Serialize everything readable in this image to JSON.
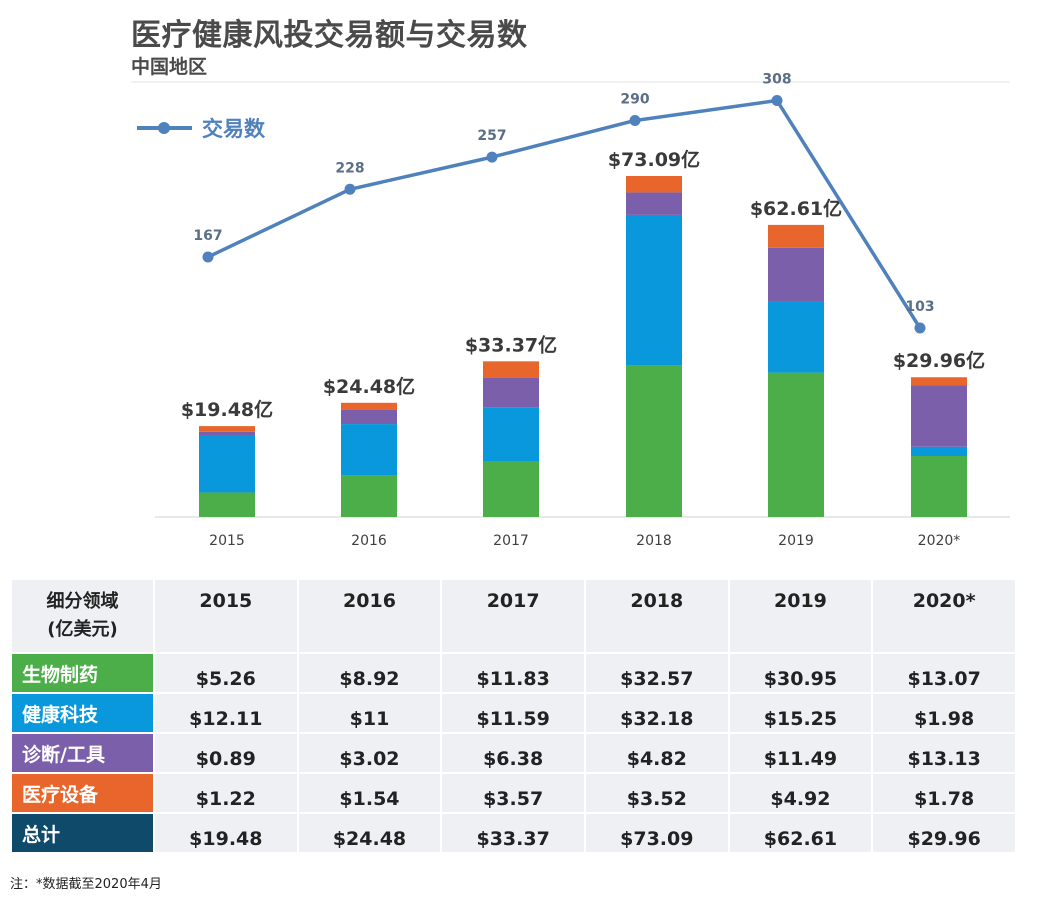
{
  "title": "医疗健康风投交易额与交易数",
  "subtitle": "中国地区",
  "chart_data": {
    "type": "bar+line",
    "categories": [
      "2015",
      "2016",
      "2017",
      "2018",
      "2019",
      "2020*"
    ],
    "series": [
      {
        "name": "生物制药",
        "color": "#4bae48",
        "values": [
          5.26,
          8.92,
          11.83,
          32.57,
          30.95,
          13.07
        ]
      },
      {
        "name": "健康科技",
        "color": "#0898db",
        "values": [
          12.11,
          11,
          11.59,
          32.18,
          15.25,
          1.98
        ]
      },
      {
        "name": "诊断/工具",
        "color": "#7b5fab",
        "values": [
          0.89,
          3.02,
          6.38,
          4.82,
          11.49,
          13.13
        ]
      },
      {
        "name": "医疗设备",
        "color": "#e8662b",
        "values": [
          1.22,
          1.54,
          3.57,
          3.52,
          4.92,
          1.78
        ]
      }
    ],
    "totals": [
      19.48,
      24.48,
      33.37,
      73.09,
      62.61,
      29.96
    ],
    "total_labels": [
      "$19.48亿",
      "$24.48亿",
      "$33.37亿",
      "$73.09亿",
      "$62.61亿",
      "$29.96亿"
    ],
    "line": {
      "name": "交易数",
      "color": "#4f81bd",
      "values": [
        167,
        228,
        257,
        290,
        308,
        103
      ]
    },
    "legend": {
      "label": "交易数",
      "position": "top-left"
    }
  },
  "table": {
    "corner_line1": "细分领域",
    "corner_line2": "(亿美元)",
    "years": [
      "2015",
      "2016",
      "2017",
      "2018",
      "2019",
      "2020*"
    ],
    "rows": [
      {
        "label": "生物制药",
        "color": "#4bae48",
        "cells": [
          "$5.26",
          "$8.92",
          "$11.83",
          "$32.57",
          "$30.95",
          "$13.07"
        ]
      },
      {
        "label": "健康科技",
        "color": "#0898db",
        "cells": [
          "$12.11",
          "$11",
          "$11.59",
          "$32.18",
          "$15.25",
          "$1.98"
        ]
      },
      {
        "label": "诊断/工具",
        "color": "#7b5fab",
        "cells": [
          "$0.89",
          "$3.02",
          "$6.38",
          "$4.82",
          "$11.49",
          "$13.13"
        ]
      },
      {
        "label": "医疗设备",
        "color": "#e8662b",
        "cells": [
          "$1.22",
          "$1.54",
          "$3.57",
          "$3.52",
          "$4.92",
          "$1.78"
        ]
      },
      {
        "label": "总计",
        "color": "#0f4a6b",
        "cells": [
          "$19.48",
          "$24.48",
          "$33.37",
          "$73.09",
          "$62.61",
          "$29.96"
        ]
      }
    ]
  },
  "note": "注：*数据截至2020年4月"
}
